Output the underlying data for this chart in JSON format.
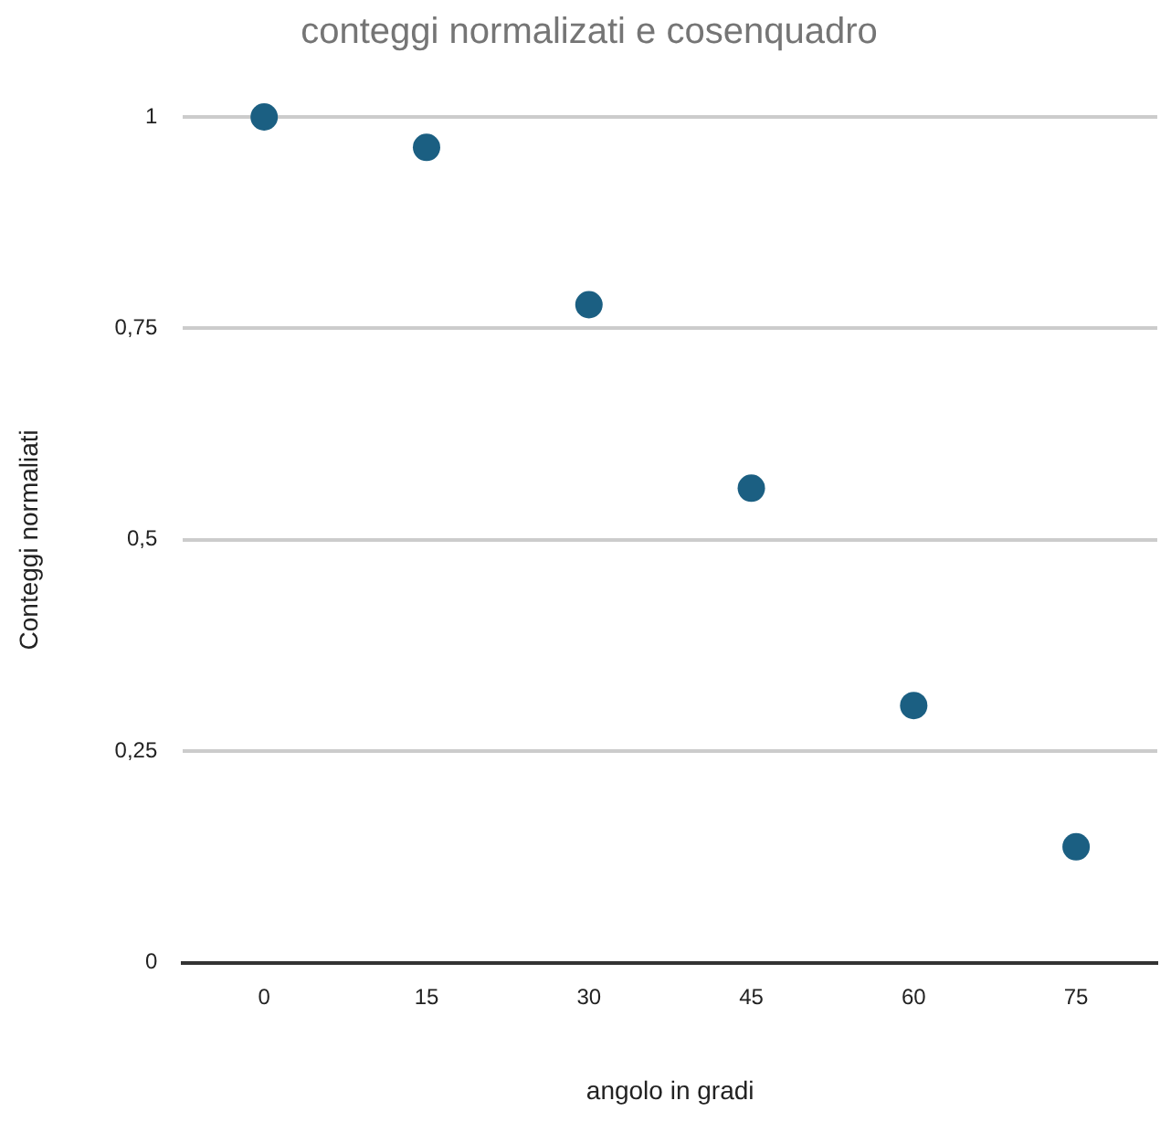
{
  "chart_data": {
    "type": "scatter",
    "title": "conteggi normalizati e cosenquadro",
    "xlabel": "angolo in gradi",
    "ylabel": "Conteggi normaliati",
    "categories": [
      "0",
      "15",
      "30",
      "45",
      "60",
      "75"
    ],
    "series": [
      {
        "color": "#1b5f82",
        "values": [
          1,
          0.964,
          0.778,
          0.561,
          0.304,
          0.137
        ]
      }
    ],
    "ylim": [
      0,
      1
    ],
    "yticks": [
      0,
      {
        "value": 0.25,
        "label": "0,25"
      },
      {
        "value": 0.5,
        "label": "0,5"
      },
      {
        "value": 0.75,
        "label": "0,75"
      },
      1
    ],
    "grid": "y",
    "legend": false,
    "marker": "circle"
  }
}
